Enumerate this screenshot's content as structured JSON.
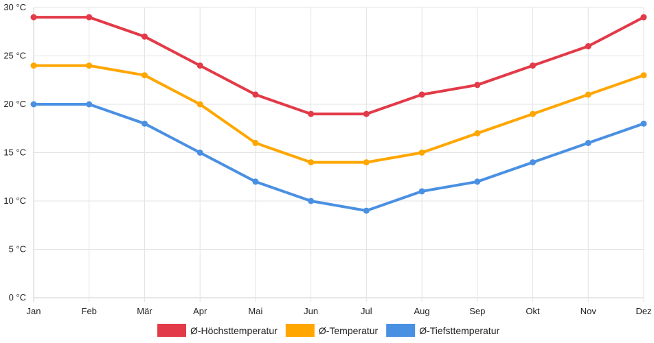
{
  "chart_data": {
    "type": "line",
    "title": "",
    "xlabel": "",
    "ylabel": "",
    "categories": [
      "Jan",
      "Feb",
      "Mär",
      "Apr",
      "Mai",
      "Jun",
      "Jul",
      "Aug",
      "Sep",
      "Okt",
      "Nov",
      "Dez"
    ],
    "ylim": [
      0,
      30
    ],
    "yticks": [
      0,
      5,
      10,
      15,
      20,
      25,
      30
    ],
    "ytick_labels": [
      "0 °C",
      "5 °C",
      "10 °C",
      "15 °C",
      "20 °C",
      "25 °C",
      "30 °C"
    ],
    "grid": true,
    "legend_position": "bottom-center",
    "series": [
      {
        "name": "Ø-Höchsttemperatur",
        "color": "#e23a48",
        "values": [
          29,
          29,
          27,
          24,
          21,
          19,
          19,
          21,
          22,
          24,
          26,
          29
        ]
      },
      {
        "name": "Ø-Temperatur",
        "color": "#ffa600",
        "values": [
          24,
          24,
          23,
          20,
          16,
          14,
          14,
          15,
          17,
          19,
          21,
          23
        ]
      },
      {
        "name": "Ø-Tiefsttemperatur",
        "color": "#4a90e2",
        "values": [
          20,
          20,
          18,
          15,
          12,
          10,
          9,
          11,
          12,
          14,
          16,
          18
        ]
      }
    ]
  }
}
